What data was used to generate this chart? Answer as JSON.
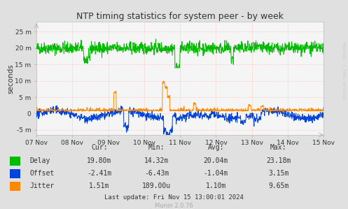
{
  "title": "NTP timing statistics for system peer - by week",
  "ylabel": "seconds",
  "bg_color": "#e0e0e0",
  "plot_bg_color": "#f5f5f5",
  "grid_color": "#ffaaaa",
  "x_labels": [
    "07 Nov",
    "08 Nov",
    "09 Nov",
    "10 Nov",
    "11 Nov",
    "12 Nov",
    "13 Nov",
    "14 Nov",
    "15 Nov"
  ],
  "ytick_labels": [
    "-5 m",
    "0",
    "5 m",
    "10 m",
    "15 m",
    "20 m",
    "25 m"
  ],
  "yticks": [
    -5,
    0,
    5,
    10,
    15,
    20,
    25
  ],
  "ylim": [
    -6.5,
    28
  ],
  "delay_color": "#00bb00",
  "offset_color": "#0044dd",
  "jitter_color": "#ff8800",
  "legend": {
    "Delay": {
      "cur": "19.80m",
      "min": "14.32m",
      "avg": "20.04m",
      "max": "23.18m"
    },
    "Offset": {
      "cur": "-2.41m",
      "min": "-6.43m",
      "avg": "-1.04m",
      "max": "3.15m"
    },
    "Jitter": {
      "cur": "1.51m",
      "min": "189.00u",
      "avg": "1.10m",
      "max": "9.65m"
    }
  },
  "last_update": "Last update: Fri Nov 15 13:00:01 2024",
  "munin_version": "Munin 2.0.76",
  "watermark": "RRDTOOL / TOBI OETIKER"
}
